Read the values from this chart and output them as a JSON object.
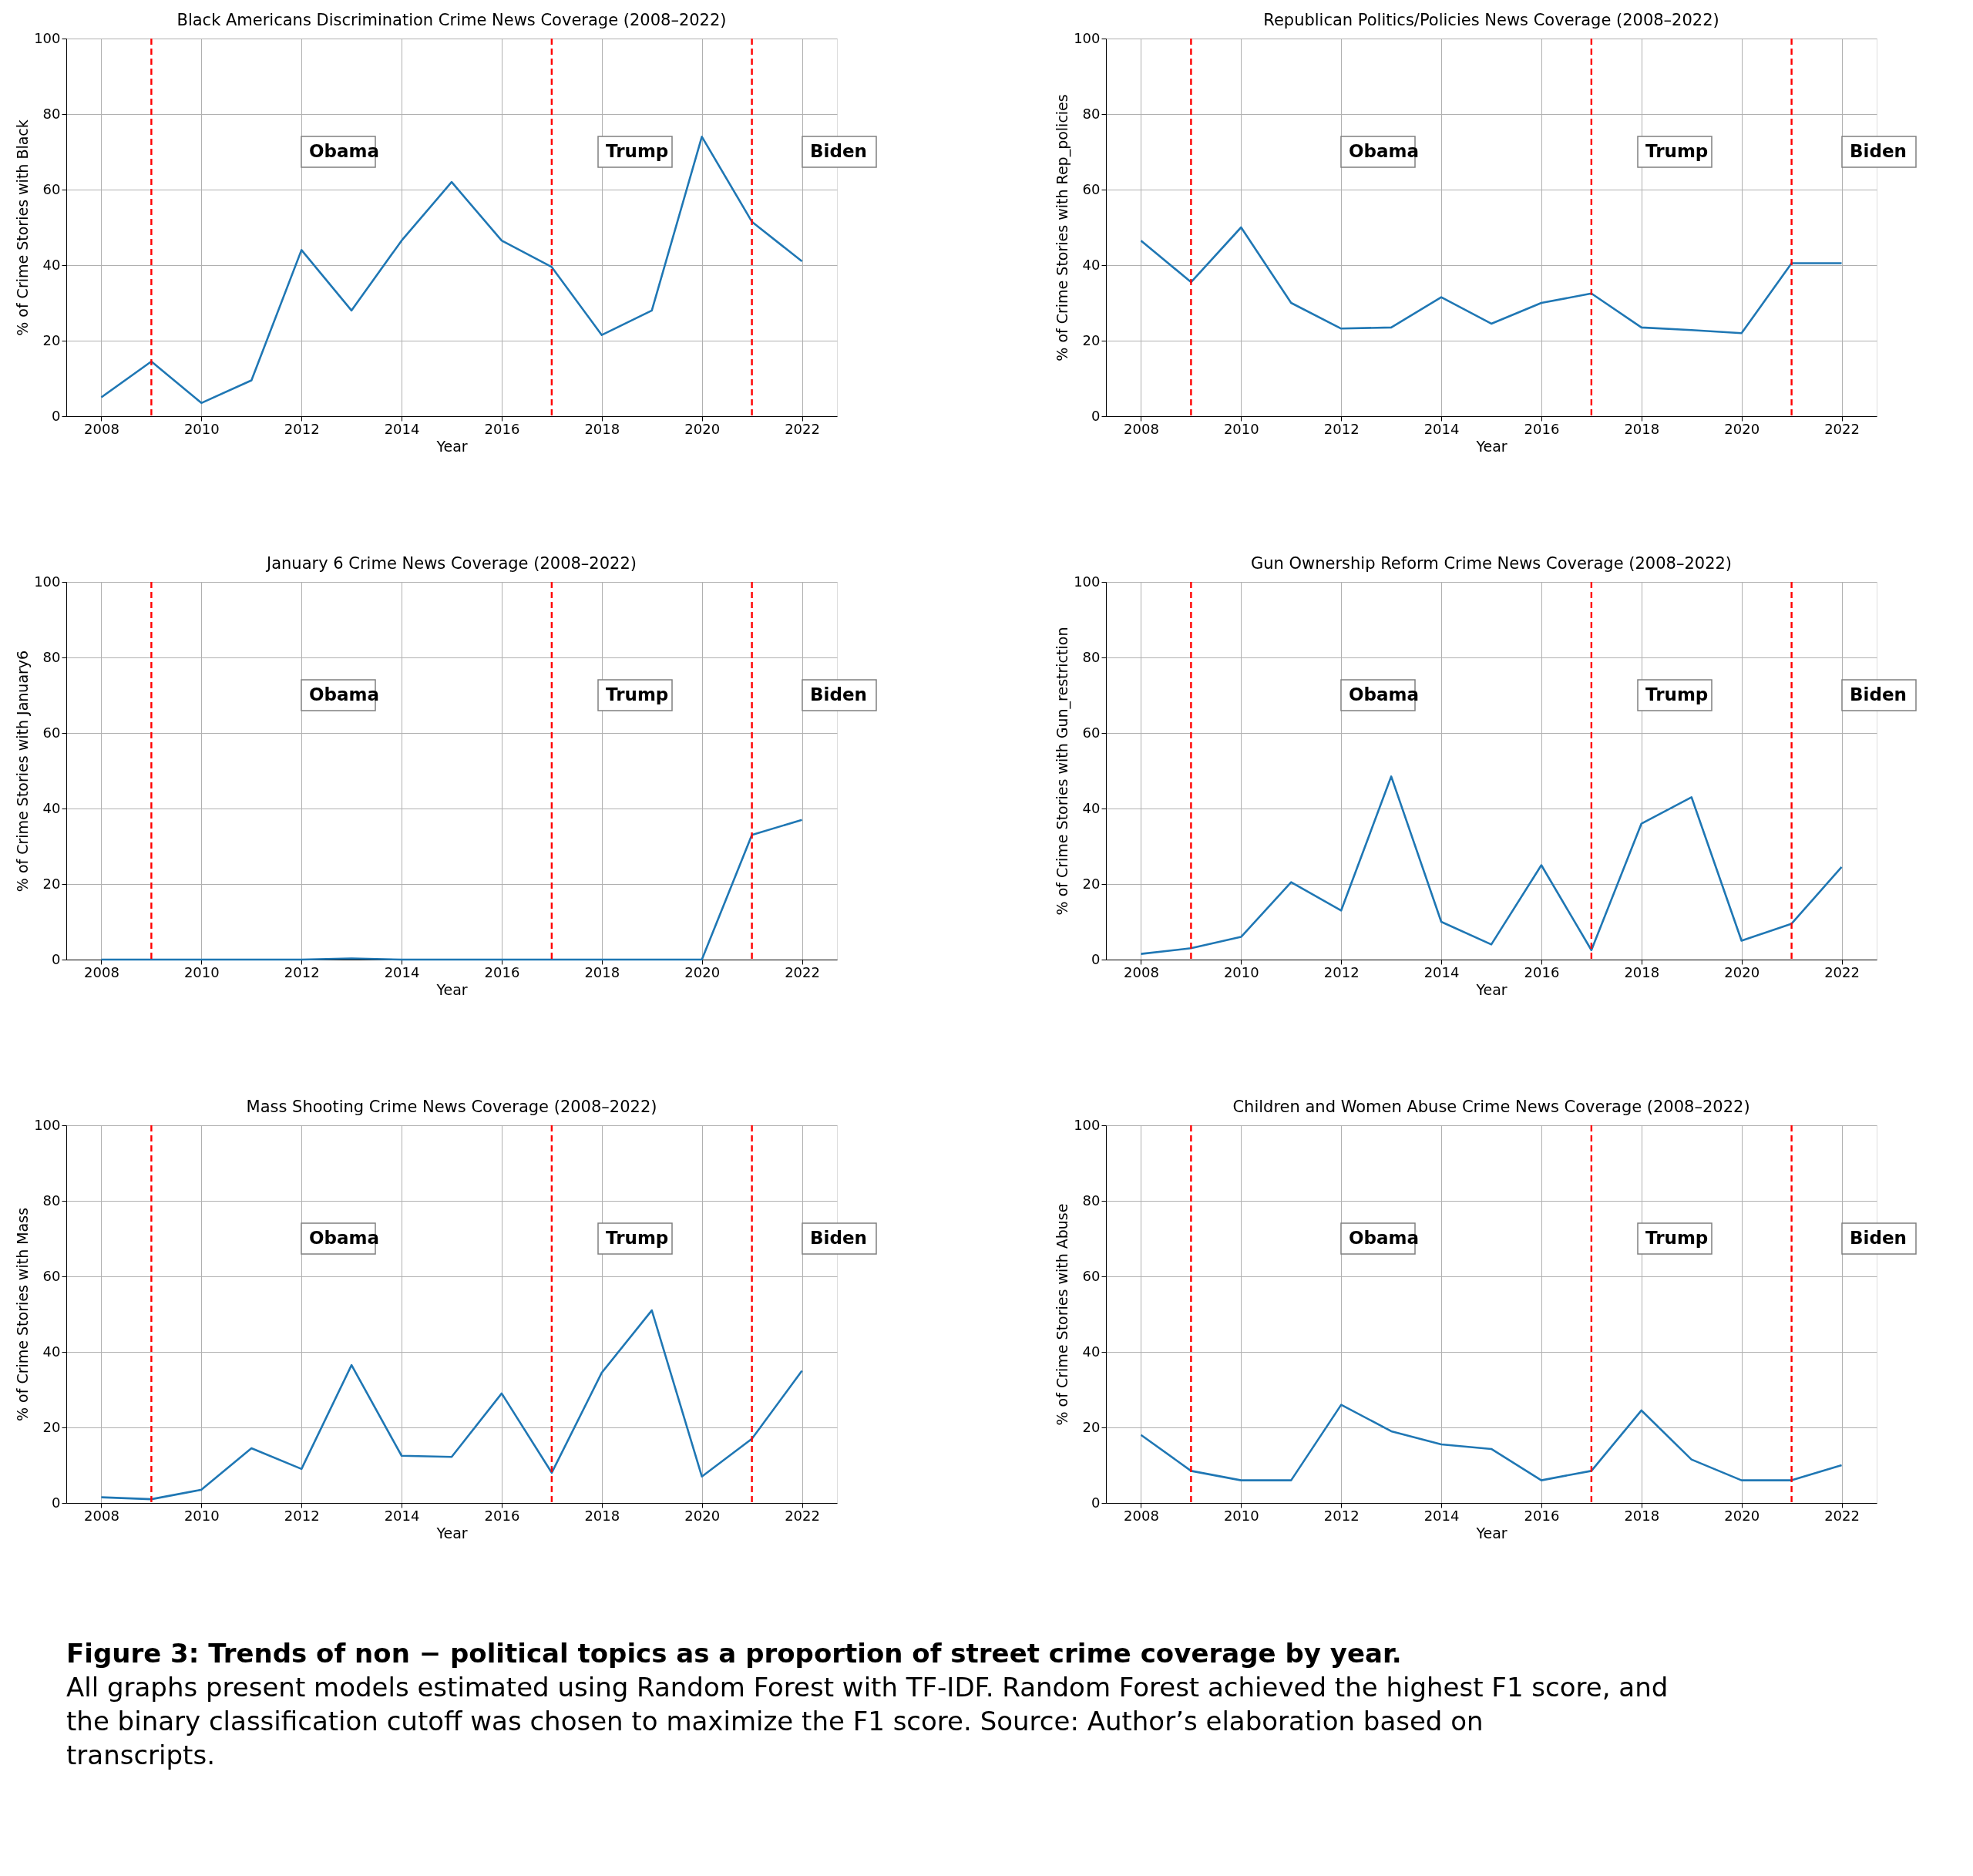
{
  "chart_data": [
    {
      "type": "line",
      "title": "Black Americans Discrimination Crime News Coverage (2008–2022)",
      "xlabel": "Year",
      "ylabel": "% of Crime Stories with Black",
      "x": [
        2008,
        2009,
        2010,
        2011,
        2012,
        2013,
        2014,
        2015,
        2016,
        2017,
        2018,
        2019,
        2020,
        2021,
        2022
      ],
      "series": [
        {
          "color": "#1f77b4",
          "values": [
            5,
            14.5,
            3.5,
            9.5,
            44,
            28,
            46.5,
            62,
            46.5,
            39.5,
            21.5,
            28,
            74,
            51.5,
            41
          ]
        }
      ],
      "xlim": [
        2007.3,
        2022.7
      ],
      "xticks": [
        2008,
        2010,
        2012,
        2014,
        2016,
        2018,
        2020,
        2022
      ],
      "ylim": [
        0,
        100
      ],
      "yticks": [
        0,
        20,
        40,
        60,
        80,
        100
      ],
      "grid": true,
      "legend": false,
      "marker": "none",
      "line_style": "solid",
      "ref_lines": [
        {
          "axis": "x",
          "value": 2009,
          "color": "#ff0000",
          "line_style": "dashed"
        },
        {
          "axis": "x",
          "value": 2017,
          "color": "#ff0000",
          "line_style": "dashed"
        },
        {
          "axis": "x",
          "value": 2021,
          "color": "#ff0000",
          "line_style": "dashed"
        }
      ],
      "annotations": [
        "Obama",
        "Trump",
        "Biden"
      ]
    },
    {
      "type": "line",
      "title": "Republican Politics/Policies News Coverage (2008–2022)",
      "xlabel": "Year",
      "ylabel": "% of Crime Stories with Rep_policies",
      "x": [
        2008,
        2009,
        2010,
        2011,
        2012,
        2013,
        2014,
        2015,
        2016,
        2017,
        2018,
        2019,
        2020,
        2021,
        2022
      ],
      "series": [
        {
          "color": "#1f77b4",
          "values": [
            46.5,
            35.5,
            50,
            30,
            23.2,
            23.5,
            31.5,
            24.5,
            30,
            32.5,
            23.5,
            22.8,
            22,
            40.5,
            40.5
          ]
        }
      ],
      "xlim": [
        2007.3,
        2022.7
      ],
      "xticks": [
        2008,
        2010,
        2012,
        2014,
        2016,
        2018,
        2020,
        2022
      ],
      "ylim": [
        0,
        100
      ],
      "yticks": [
        0,
        20,
        40,
        60,
        80,
        100
      ],
      "grid": true,
      "legend": false,
      "marker": "none",
      "line_style": "solid",
      "ref_lines": [
        {
          "axis": "x",
          "value": 2009,
          "color": "#ff0000",
          "line_style": "dashed"
        },
        {
          "axis": "x",
          "value": 2017,
          "color": "#ff0000",
          "line_style": "dashed"
        },
        {
          "axis": "x",
          "value": 2021,
          "color": "#ff0000",
          "line_style": "dashed"
        }
      ],
      "annotations": [
        "Obama",
        "Trump",
        "Biden"
      ]
    },
    {
      "type": "line",
      "title": "January 6 Crime News Coverage (2008–2022)",
      "xlabel": "Year",
      "ylabel": "% of Crime Stories with January6",
      "x": [
        2008,
        2009,
        2010,
        2011,
        2012,
        2013,
        2014,
        2015,
        2016,
        2017,
        2018,
        2019,
        2020,
        2021,
        2022
      ],
      "series": [
        {
          "color": "#1f77b4",
          "values": [
            0,
            0,
            0,
            0,
            0,
            0.3,
            0,
            0,
            0,
            0,
            0,
            0,
            0,
            33,
            37
          ]
        }
      ],
      "xlim": [
        2007.3,
        2022.7
      ],
      "xticks": [
        2008,
        2010,
        2012,
        2014,
        2016,
        2018,
        2020,
        2022
      ],
      "ylim": [
        0,
        100
      ],
      "yticks": [
        0,
        20,
        40,
        60,
        80,
        100
      ],
      "grid": true,
      "legend": false,
      "marker": "none",
      "line_style": "solid",
      "ref_lines": [
        {
          "axis": "x",
          "value": 2009,
          "color": "#ff0000",
          "line_style": "dashed"
        },
        {
          "axis": "x",
          "value": 2017,
          "color": "#ff0000",
          "line_style": "dashed"
        },
        {
          "axis": "x",
          "value": 2021,
          "color": "#ff0000",
          "line_style": "dashed"
        }
      ],
      "annotations": [
        "Obama",
        "Trump",
        "Biden"
      ]
    },
    {
      "type": "line",
      "title": "Gun Ownership Reform Crime News Coverage (2008–2022)",
      "xlabel": "Year",
      "ylabel": "% of Crime Stories with Gun_restriction",
      "x": [
        2008,
        2009,
        2010,
        2011,
        2012,
        2013,
        2014,
        2015,
        2016,
        2017,
        2018,
        2019,
        2020,
        2021,
        2022
      ],
      "series": [
        {
          "color": "#1f77b4",
          "values": [
            1.5,
            3,
            6,
            20.5,
            13,
            48.5,
            10,
            4,
            25,
            2.5,
            36,
            43,
            5,
            9.5,
            24.5
          ]
        }
      ],
      "xlim": [
        2007.3,
        2022.7
      ],
      "xticks": [
        2008,
        2010,
        2012,
        2014,
        2016,
        2018,
        2020,
        2022
      ],
      "ylim": [
        0,
        100
      ],
      "yticks": [
        0,
        20,
        40,
        60,
        80,
        100
      ],
      "grid": true,
      "legend": false,
      "marker": "none",
      "line_style": "solid",
      "ref_lines": [
        {
          "axis": "x",
          "value": 2009,
          "color": "#ff0000",
          "line_style": "dashed"
        },
        {
          "axis": "x",
          "value": 2017,
          "color": "#ff0000",
          "line_style": "dashed"
        },
        {
          "axis": "x",
          "value": 2021,
          "color": "#ff0000",
          "line_style": "dashed"
        }
      ],
      "annotations": [
        "Obama",
        "Trump",
        "Biden"
      ]
    },
    {
      "type": "line",
      "title": "Mass Shooting Crime News Coverage (2008–2022)",
      "xlabel": "Year",
      "ylabel": "% of Crime Stories with Mass",
      "x": [
        2008,
        2009,
        2010,
        2011,
        2012,
        2013,
        2014,
        2015,
        2016,
        2017,
        2018,
        2019,
        2020,
        2021,
        2022
      ],
      "series": [
        {
          "color": "#1f77b4",
          "values": [
            1.5,
            1,
            3.5,
            14.5,
            9,
            36.5,
            12.5,
            12.2,
            29,
            8,
            34.5,
            51,
            7,
            17,
            35
          ]
        }
      ],
      "xlim": [
        2007.3,
        2022.7
      ],
      "xticks": [
        2008,
        2010,
        2012,
        2014,
        2016,
        2018,
        2020,
        2022
      ],
      "ylim": [
        0,
        100
      ],
      "yticks": [
        0,
        20,
        40,
        60,
        80,
        100
      ],
      "grid": true,
      "legend": false,
      "marker": "none",
      "line_style": "solid",
      "ref_lines": [
        {
          "axis": "x",
          "value": 2009,
          "color": "#ff0000",
          "line_style": "dashed"
        },
        {
          "axis": "x",
          "value": 2017,
          "color": "#ff0000",
          "line_style": "dashed"
        },
        {
          "axis": "x",
          "value": 2021,
          "color": "#ff0000",
          "line_style": "dashed"
        }
      ],
      "annotations": [
        "Obama",
        "Trump",
        "Biden"
      ]
    },
    {
      "type": "line",
      "title": "Children and Women Abuse Crime News Coverage (2008–2022)",
      "xlabel": "Year",
      "ylabel": "% of Crime Stories with Abuse",
      "x": [
        2008,
        2009,
        2010,
        2011,
        2012,
        2013,
        2014,
        2015,
        2016,
        2017,
        2018,
        2019,
        2020,
        2021,
        2022
      ],
      "series": [
        {
          "color": "#1f77b4",
          "values": [
            18,
            8.5,
            6,
            6,
            26,
            19,
            15.5,
            14.3,
            6,
            8.5,
            24.5,
            11.5,
            6,
            6,
            10
          ]
        }
      ],
      "xlim": [
        2007.3,
        2022.7
      ],
      "xticks": [
        2008,
        2010,
        2012,
        2014,
        2016,
        2018,
        2020,
        2022
      ],
      "ylim": [
        0,
        100
      ],
      "yticks": [
        0,
        20,
        40,
        60,
        80,
        100
      ],
      "grid": true,
      "legend": false,
      "marker": "none",
      "line_style": "solid",
      "ref_lines": [
        {
          "axis": "x",
          "value": 2009,
          "color": "#ff0000",
          "line_style": "dashed"
        },
        {
          "axis": "x",
          "value": 2017,
          "color": "#ff0000",
          "line_style": "dashed"
        },
        {
          "axis": "x",
          "value": 2021,
          "color": "#ff0000",
          "line_style": "dashed"
        }
      ],
      "annotations": [
        "Obama",
        "Trump",
        "Biden"
      ]
    },
    {
      "type": "other",
      "title": "Figure 3: Trends of non − political topics as a proportion of street crime coverage by year.",
      "annotations": [
        "All graphs present models estimated using Random Forest with TF-IDF. Random Forest achieved the highest F1 score, and the binary classification cutoff was chosen to maximize the F1 score. Source: Author’s elaboration based on transcripts."
      ]
    }
  ]
}
